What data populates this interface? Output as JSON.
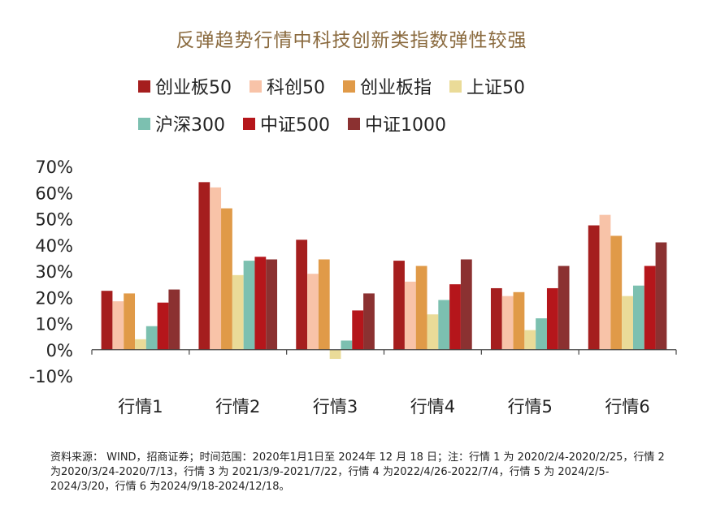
{
  "chart_data": {
    "type": "bar",
    "title": "反弹趋势行情中科技创新类指数弹性较强",
    "xlabel": "",
    "ylabel": "",
    "ylim": [
      -10,
      70
    ],
    "yticks": [
      70,
      60,
      50,
      40,
      30,
      20,
      10,
      0,
      -10
    ],
    "ytick_labels": [
      "70%",
      "60%",
      "50%",
      "40%",
      "30%",
      "20%",
      "10%",
      "0%",
      "-10%"
    ],
    "categories": [
      "行情1",
      "行情2",
      "行情3",
      "行情4",
      "行情5",
      "行情6"
    ],
    "series": [
      {
        "name": "创业板50",
        "color": "#a51e1e",
        "values": [
          22.5,
          64,
          42,
          34,
          23.5,
          47.5
        ]
      },
      {
        "name": "科创50",
        "color": "#f8c3a8",
        "values": [
          18.5,
          62,
          29,
          26,
          20.5,
          51.5
        ]
      },
      {
        "name": "创业板指",
        "color": "#e09a48",
        "values": [
          21.5,
          54,
          34.5,
          32,
          22,
          43.5
        ]
      },
      {
        "name": "上证50",
        "color": "#eadb98",
        "values": [
          4,
          28.5,
          -3.5,
          13.5,
          7.5,
          20.5
        ]
      },
      {
        "name": "沪深300",
        "color": "#7cc0b0",
        "values": [
          9,
          34,
          3.5,
          19,
          12,
          24.5
        ]
      },
      {
        "name": "中证500",
        "color": "#b5161b",
        "values": [
          18,
          35.5,
          15,
          25,
          23.5,
          32
        ]
      },
      {
        "name": "中证1000",
        "color": "#8b3131",
        "values": [
          23,
          34.5,
          21.5,
          34.5,
          32,
          41
        ]
      }
    ],
    "legend_position": "top",
    "grid": false
  },
  "source_note": "资料来源： WIND，招商证券；时间范围：2020年1月1日至 2024年 12 月 18 日；注：行情 1 为 2020/2/4-2020/2/25，行情 2 为2020/3/24-2020/7/13，行情 3 为 2021/3/9-2021/7/22，行情 4 为2022/4/26-2022/7/4，行情 5 为 2024/2/5-2024/3/20，行情 6 为2024/9/18-2024/12/18。"
}
